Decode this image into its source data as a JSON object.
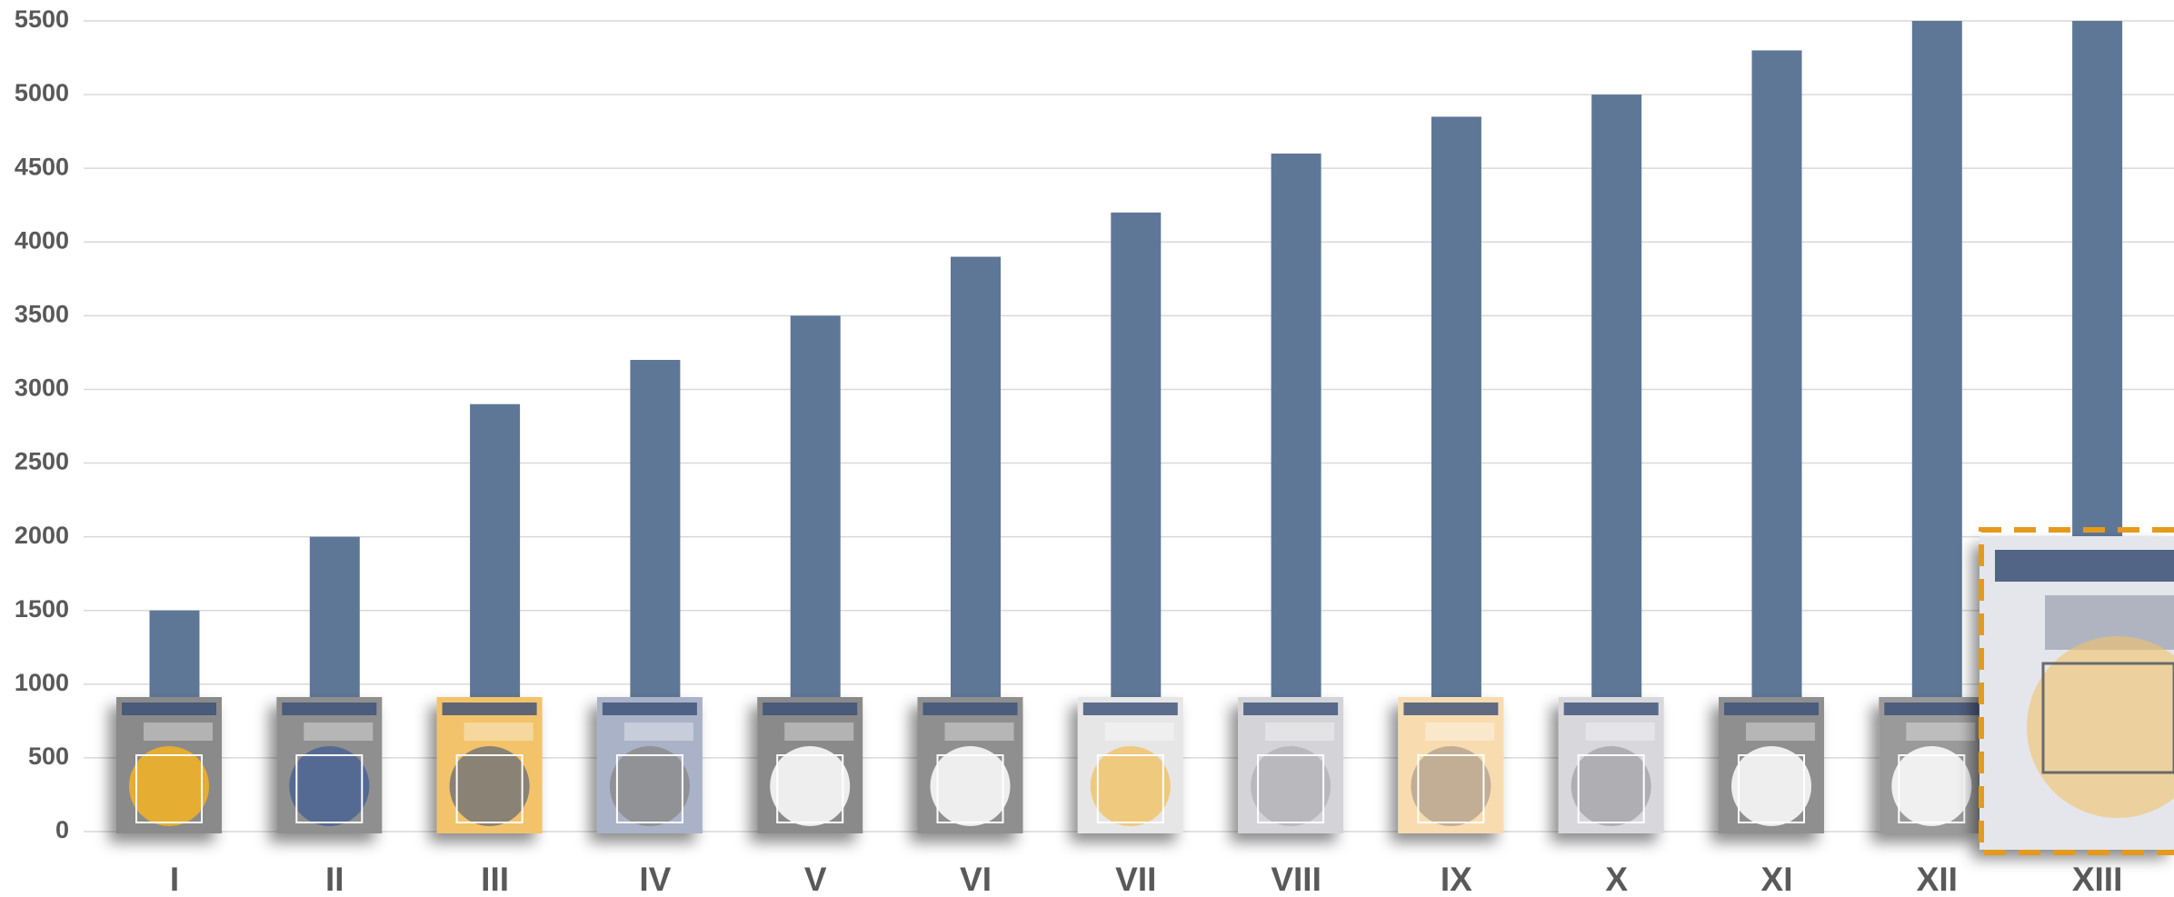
{
  "chart_data": {
    "type": "bar",
    "categories": [
      "I",
      "II",
      "III",
      "IV",
      "V",
      "VI",
      "VII",
      "VIII",
      "IX",
      "X",
      "XI",
      "XII",
      "XIII"
    ],
    "values": [
      1500,
      2000,
      2900,
      3200,
      3500,
      3900,
      4200,
      4600,
      4850,
      5000,
      5300,
      5500,
      5500
    ],
    "color": "#5f7797",
    "ylim": [
      0,
      5500
    ],
    "yticks": [
      0,
      500,
      1000,
      1500,
      2000,
      2500,
      3000,
      3500,
      4000,
      4500,
      5000,
      5500
    ],
    "grid": true
  }
}
